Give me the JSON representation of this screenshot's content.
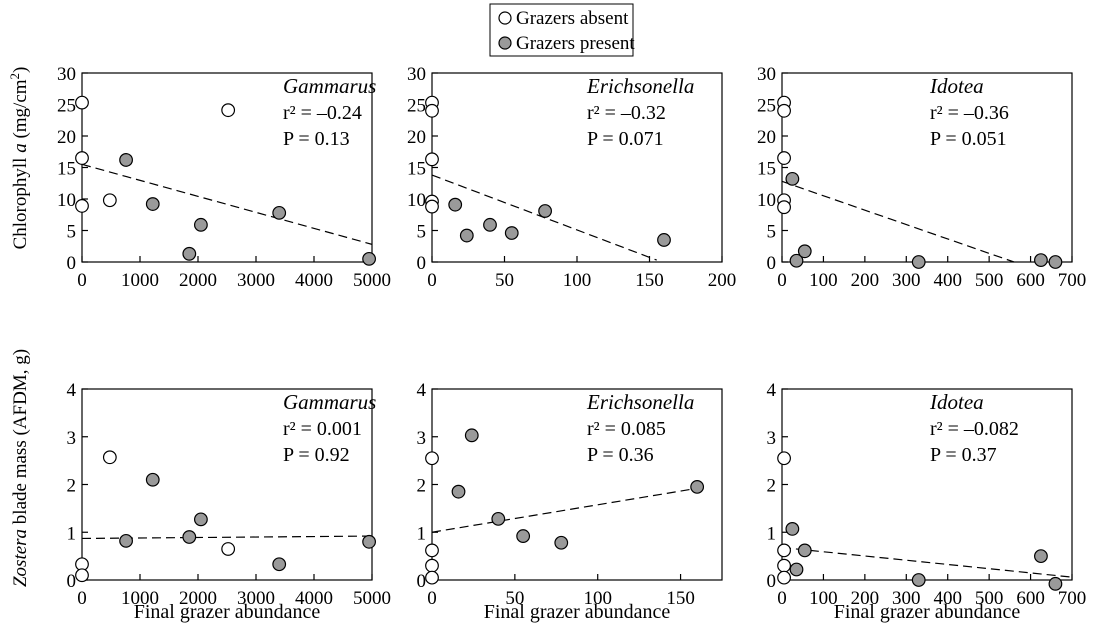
{
  "legend": [
    {
      "label": "Grazers absent",
      "marker": "open"
    },
    {
      "label": "Grazers present",
      "marker": "filled"
    }
  ],
  "colors": {
    "open_fill": "#ffffff",
    "filled_fill": "#9a9a9a",
    "stroke": "#000000"
  },
  "row_ylabels": {
    "top": {
      "italic": "",
      "pre": "Chlorophyll ",
      "ital": "a",
      "post": " (mg/cm",
      "sup": "2",
      "end": ")"
    },
    "bottom": {
      "pre": "",
      "ital": "Zostera",
      "post": " blade mass (AFDM, g)",
      "sup": "",
      "end": ""
    }
  },
  "chart_data": [
    {
      "type": "scatter",
      "title": "Gammarus",
      "r2": "r² = –0.24",
      "p": "P = 0.13",
      "xlim": [
        0,
        5000
      ],
      "ylim": [
        0,
        30
      ],
      "xticks": [
        0,
        1000,
        2000,
        3000,
        4000,
        5000
      ],
      "yticks": [
        0,
        5,
        10,
        15,
        20,
        25,
        30
      ],
      "xlabel": "",
      "ylabel": "Chlorophyll a (mg/cm2)",
      "series": [
        {
          "name": "Grazers absent",
          "points": [
            [
              0,
              25.3
            ],
            [
              0,
              16.5
            ],
            [
              0,
              8.9
            ],
            [
              480,
              9.8
            ],
            [
              2520,
              24.1
            ]
          ]
        },
        {
          "name": "Grazers present",
          "points": [
            [
              760,
              16.2
            ],
            [
              1220,
              9.2
            ],
            [
              1850,
              1.3
            ],
            [
              2050,
              5.9
            ],
            [
              3400,
              7.8
            ],
            [
              4950,
              0.5
            ]
          ]
        }
      ],
      "trend": [
        [
          0,
          15.5
        ],
        [
          5000,
          2.8
        ]
      ]
    },
    {
      "type": "scatter",
      "title": "Erichsonella",
      "r2": "r² = –0.32",
      "p": "P = 0.071",
      "xlim": [
        0,
        200
      ],
      "ylim": [
        0,
        30
      ],
      "xticks": [
        0,
        50,
        100,
        150,
        200
      ],
      "yticks": [
        0,
        5,
        10,
        15,
        20,
        25,
        30
      ],
      "xlabel": "",
      "ylabel": "",
      "series": [
        {
          "name": "Grazers absent",
          "points": [
            [
              0,
              25.3
            ],
            [
              0,
              24.0
            ],
            [
              0,
              16.3
            ],
            [
              0,
              9.6
            ],
            [
              0,
              8.8
            ]
          ]
        },
        {
          "name": "Grazers present",
          "points": [
            [
              16,
              9.1
            ],
            [
              24,
              4.2
            ],
            [
              40,
              5.9
            ],
            [
              55,
              4.6
            ],
            [
              78,
              8.1
            ],
            [
              160,
              3.5
            ]
          ]
        }
      ],
      "trend": [
        [
          0,
          13.8
        ],
        [
          155,
          0.3
        ]
      ]
    },
    {
      "type": "scatter",
      "title": "Idotea",
      "r2": "r² = –0.36",
      "p": "P = 0.051",
      "xlim": [
        0,
        700
      ],
      "ylim": [
        0,
        30
      ],
      "xticks": [
        0,
        100,
        200,
        300,
        400,
        500,
        600,
        700
      ],
      "yticks": [
        0,
        5,
        10,
        15,
        20,
        25,
        30
      ],
      "xlabel": "",
      "ylabel": "",
      "series": [
        {
          "name": "Grazers absent",
          "points": [
            [
              5,
              25.3
            ],
            [
              5,
              24.0
            ],
            [
              5,
              16.5
            ],
            [
              5,
              9.8
            ],
            [
              5,
              8.7
            ]
          ]
        },
        {
          "name": "Grazers present",
          "points": [
            [
              25,
              13.2
            ],
            [
              35,
              0.2
            ],
            [
              55,
              1.7
            ],
            [
              330,
              0.0
            ],
            [
              625,
              0.3
            ],
            [
              660,
              0.0
            ]
          ]
        }
      ],
      "trend": [
        [
          0,
          12.8
        ],
        [
          560,
          0.0
        ]
      ]
    },
    {
      "type": "scatter",
      "title": "Gammarus",
      "r2": "r² = 0.001",
      "p": "P = 0.92",
      "xlim": [
        0,
        5000
      ],
      "ylim": [
        0,
        4
      ],
      "xticks": [
        0,
        1000,
        2000,
        3000,
        4000,
        5000
      ],
      "yticks": [
        0,
        1,
        2,
        3,
        4
      ],
      "xlabel": "Final grazer abundance",
      "ylabel": "Zostera blade mass (AFDM, g)",
      "series": [
        {
          "name": "Grazers absent",
          "points": [
            [
              0,
              0.33
            ],
            [
              0,
              0.1
            ],
            [
              480,
              2.57
            ],
            [
              2520,
              0.65
            ]
          ]
        },
        {
          "name": "Grazers present",
          "points": [
            [
              760,
              0.82
            ],
            [
              1220,
              2.1
            ],
            [
              1850,
              0.9
            ],
            [
              2050,
              1.27
            ],
            [
              3400,
              0.33
            ],
            [
              4950,
              0.8
            ]
          ]
        }
      ],
      "trend": [
        [
          0,
          0.87
        ],
        [
          5000,
          0.92
        ]
      ]
    },
    {
      "type": "scatter",
      "title": "Erichsonella",
      "r2": "r² = 0.085",
      "p": "P = 0.36",
      "xlim": [
        0,
        175
      ],
      "ylim": [
        0,
        4
      ],
      "xticks": [
        0,
        50,
        100,
        150
      ],
      "yticks": [
        0,
        1,
        2,
        3,
        4
      ],
      "xlabel": "Final grazer abundance",
      "ylabel": "",
      "series": [
        {
          "name": "Grazers absent",
          "points": [
            [
              0,
              2.55
            ],
            [
              0,
              0.62
            ],
            [
              0,
              0.3
            ],
            [
              0,
              0.05
            ]
          ]
        },
        {
          "name": "Grazers present",
          "points": [
            [
              16,
              1.85
            ],
            [
              24,
              3.03
            ],
            [
              40,
              1.28
            ],
            [
              55,
              0.92
            ],
            [
              78,
              0.78
            ],
            [
              160,
              1.95
            ]
          ]
        }
      ],
      "trend": [
        [
          0,
          1.0
        ],
        [
          160,
          1.92
        ]
      ]
    },
    {
      "type": "scatter",
      "title": "Idotea",
      "r2": "r² = –0.082",
      "p": "P = 0.37",
      "xlim": [
        0,
        700
      ],
      "ylim": [
        0,
        4
      ],
      "xticks": [
        0,
        100,
        200,
        300,
        400,
        500,
        600,
        700
      ],
      "yticks": [
        0,
        1,
        2,
        3,
        4
      ],
      "xlabel": "Final grazer abundance",
      "ylabel": "",
      "series": [
        {
          "name": "Grazers absent",
          "points": [
            [
              5,
              2.55
            ],
            [
              5,
              0.62
            ],
            [
              5,
              0.3
            ],
            [
              5,
              0.05
            ]
          ]
        },
        {
          "name": "Grazers present",
          "points": [
            [
              25,
              1.07
            ],
            [
              35,
              0.22
            ],
            [
              55,
              0.62
            ],
            [
              330,
              0.0
            ],
            [
              625,
              0.5
            ],
            [
              660,
              -0.08
            ]
          ]
        }
      ],
      "trend": [
        [
          0,
          0.68
        ],
        [
          700,
          0.06
        ]
      ]
    }
  ]
}
